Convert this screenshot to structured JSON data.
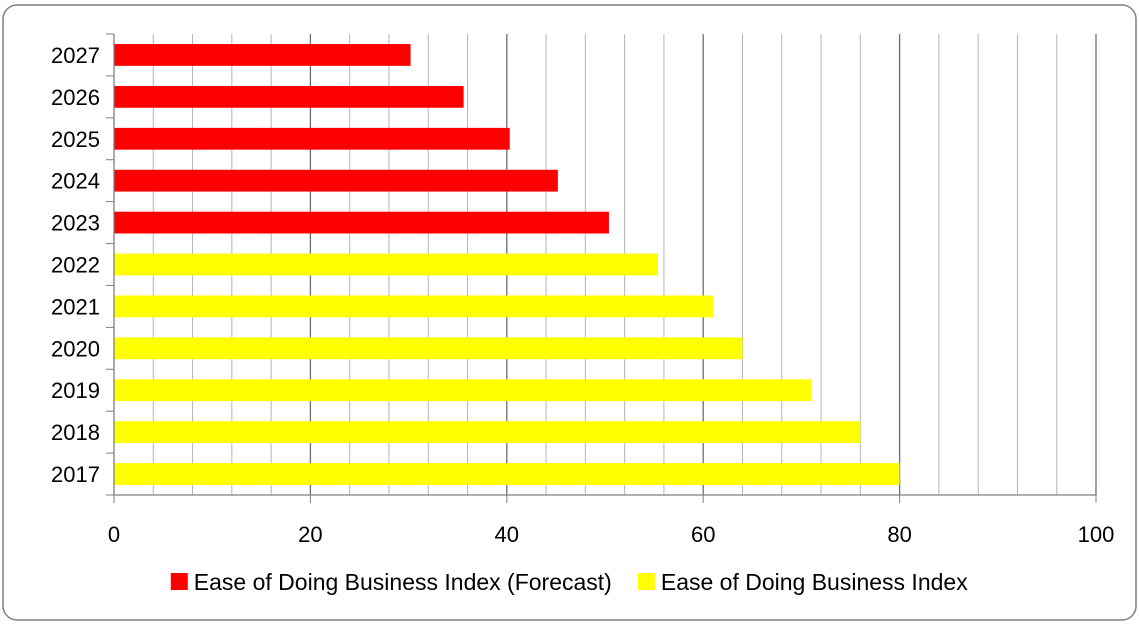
{
  "chart_data": {
    "type": "bar",
    "orientation": "horizontal",
    "categories": [
      "2017",
      "2018",
      "2019",
      "2020",
      "2021",
      "2022",
      "2023",
      "2024",
      "2025",
      "2026",
      "2027"
    ],
    "series": [
      {
        "name": "Ease of Doing Business Index (Forecast)",
        "color": "#ff0000",
        "values": [
          null,
          null,
          null,
          null,
          null,
          null,
          50.4,
          45.2,
          40.3,
          35.6,
          30.2
        ]
      },
      {
        "name": "Ease of Doing Business Index",
        "color": "#ffff00",
        "values": [
          80.0,
          76.0,
          71.0,
          64.0,
          61.0,
          55.4,
          null,
          null,
          null,
          null,
          null
        ]
      }
    ],
    "xlim": [
      0,
      100
    ],
    "x_ticks": [
      0,
      20,
      40,
      60,
      80,
      100
    ],
    "minor_step": 4,
    "grid": true,
    "legend_position": "bottom",
    "title": "",
    "xlabel": "",
    "ylabel": ""
  }
}
